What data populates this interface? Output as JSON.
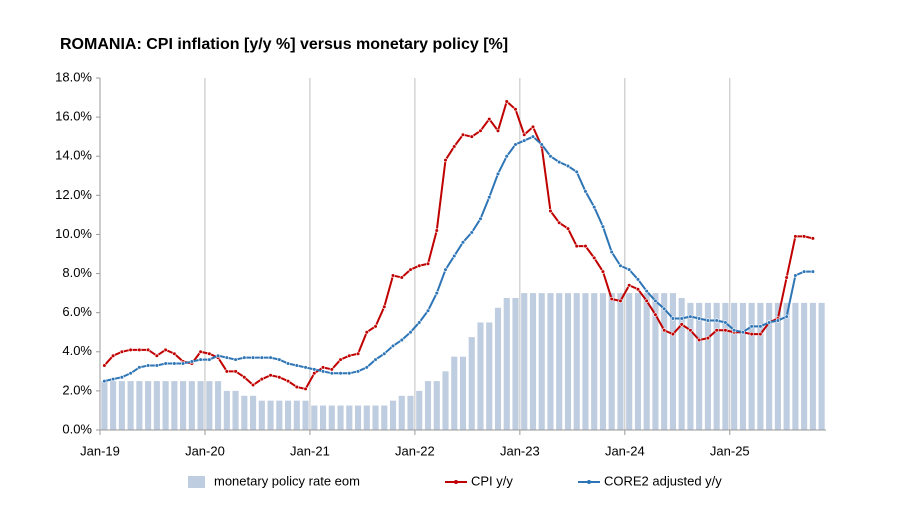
{
  "chart_data": {
    "type": "bar-line",
    "title": "ROMANIA: CPI inflation [y/y %] versus monetary policy [%]",
    "categories": [
      "Jan-19",
      null,
      null,
      null,
      null,
      null,
      null,
      null,
      null,
      null,
      null,
      null,
      "Jan-20",
      null,
      null,
      null,
      null,
      null,
      null,
      null,
      null,
      null,
      null,
      null,
      "Jan-21",
      null,
      null,
      null,
      null,
      null,
      null,
      null,
      null,
      null,
      null,
      null,
      "Jan-22",
      null,
      null,
      null,
      null,
      null,
      null,
      null,
      null,
      null,
      null,
      null,
      "Jan-23",
      null,
      null,
      null,
      null,
      null,
      null,
      null,
      null,
      null,
      null,
      null,
      "Jan-24",
      null,
      null,
      null,
      null,
      null,
      null,
      null,
      null,
      null,
      null,
      null,
      "Jan-25",
      null,
      null,
      null,
      null,
      null,
      null,
      null,
      null,
      null,
      null
    ],
    "series": [
      {
        "name": "monetary policy rate eom",
        "type": "bar",
        "color": "#bfcde0",
        "values": [
          2.5,
          2.5,
          2.5,
          2.5,
          2.5,
          2.5,
          2.5,
          2.5,
          2.5,
          2.5,
          2.5,
          2.5,
          2.5,
          2.5,
          2.0,
          2.0,
          1.75,
          1.75,
          1.5,
          1.5,
          1.5,
          1.5,
          1.5,
          1.5,
          1.25,
          1.25,
          1.25,
          1.25,
          1.25,
          1.25,
          1.25,
          1.25,
          1.25,
          1.5,
          1.75,
          1.75,
          2.0,
          2.5,
          2.5,
          3.0,
          3.75,
          3.75,
          4.75,
          5.5,
          5.5,
          6.25,
          6.75,
          6.75,
          7.0,
          7.0,
          7.0,
          7.0,
          7.0,
          7.0,
          7.0,
          7.0,
          7.0,
          7.0,
          7.0,
          7.0,
          7.0,
          7.0,
          7.0,
          7.0,
          7.0,
          7.0,
          6.75,
          6.5,
          6.5,
          6.5,
          6.5,
          6.5,
          6.5,
          6.5,
          6.5,
          6.5,
          6.5,
          6.5,
          6.5,
          6.5,
          6.5,
          6.5,
          6.5
        ]
      },
      {
        "name": "CPI y/y",
        "type": "line",
        "color": "#c00000",
        "values": [
          3.3,
          3.8,
          4.0,
          4.1,
          4.1,
          4.1,
          3.8,
          4.1,
          3.9,
          3.5,
          3.4,
          4.0,
          3.9,
          3.7,
          3.0,
          3.0,
          2.7,
          2.3,
          2.6,
          2.8,
          2.7,
          2.5,
          2.2,
          2.1,
          2.9,
          3.2,
          3.1,
          3.6,
          3.8,
          3.9,
          5.0,
          5.3,
          6.3,
          7.9,
          7.8,
          8.2,
          8.4,
          8.5,
          10.2,
          13.8,
          14.5,
          15.1,
          15.0,
          15.3,
          15.9,
          15.3,
          16.8,
          16.4,
          15.1,
          15.5,
          14.5,
          11.2,
          10.6,
          10.3,
          9.4,
          9.4,
          8.8,
          8.1,
          6.7,
          6.6,
          7.4,
          7.2,
          6.6,
          5.9,
          5.1,
          4.9,
          5.4,
          5.1,
          4.6,
          4.7,
          5.1,
          5.1,
          5.0,
          5.0,
          4.9,
          4.9,
          5.5,
          5.7,
          7.8,
          9.9,
          9.9,
          9.8,
          null
        ]
      },
      {
        "name": "CORE2 adjusted y/y",
        "type": "line",
        "color": "#2e75b6",
        "values": [
          2.5,
          2.6,
          2.7,
          2.9,
          3.2,
          3.3,
          3.3,
          3.4,
          3.4,
          3.4,
          3.5,
          3.6,
          3.6,
          3.8,
          3.7,
          3.6,
          3.7,
          3.7,
          3.7,
          3.7,
          3.6,
          3.4,
          3.3,
          3.2,
          3.1,
          3.0,
          2.9,
          2.9,
          2.9,
          3.0,
          3.2,
          3.6,
          3.9,
          4.3,
          4.6,
          5.0,
          5.5,
          6.1,
          7.0,
          8.2,
          8.9,
          9.6,
          10.1,
          10.8,
          11.9,
          13.1,
          14.0,
          14.6,
          14.8,
          15.0,
          14.6,
          14.0,
          13.7,
          13.5,
          13.2,
          12.2,
          11.4,
          10.4,
          9.1,
          8.4,
          8.2,
          7.7,
          7.1,
          6.6,
          6.2,
          5.7,
          5.7,
          5.8,
          5.7,
          5.6,
          5.6,
          5.5,
          5.1,
          5.0,
          5.3,
          5.3,
          5.5,
          5.6,
          5.8,
          7.9,
          8.1,
          8.1,
          null
        ]
      }
    ],
    "ylim": [
      0,
      18
    ],
    "yticks": [
      {
        "value": 0,
        "label": "0.0%"
      },
      {
        "value": 2,
        "label": "2.0%"
      },
      {
        "value": 4,
        "label": "4.0%"
      },
      {
        "value": 6,
        "label": "6.0%"
      },
      {
        "value": 8,
        "label": "8.0%"
      },
      {
        "value": 10,
        "label": "10.0%"
      },
      {
        "value": 12,
        "label": "12.0%"
      },
      {
        "value": 14,
        "label": "14.0%"
      },
      {
        "value": 16,
        "label": "16.0%"
      },
      {
        "value": 18,
        "label": "18.0%"
      }
    ],
    "legend": "bottom"
  }
}
